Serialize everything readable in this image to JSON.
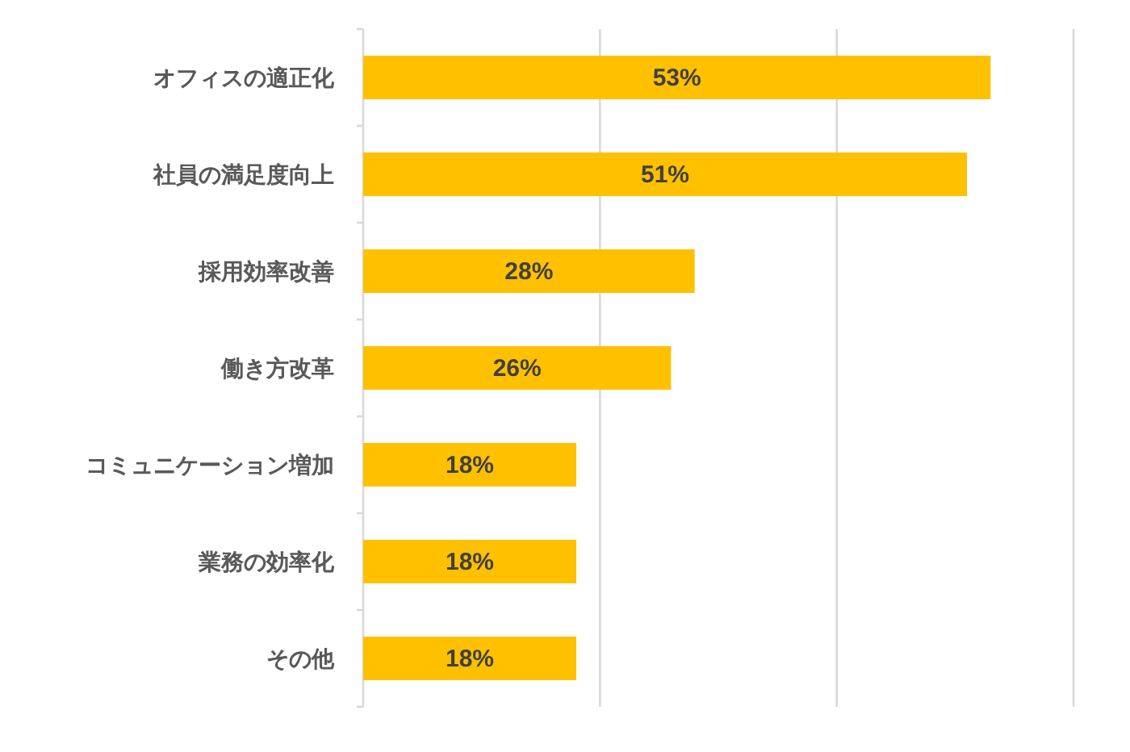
{
  "chart_data": {
    "type": "bar",
    "orientation": "horizontal",
    "categories": [
      "オフィスの適正化",
      "社員の満足度向上",
      "採用効率改善",
      "働き方改革",
      "コミュニケーション増加",
      "業務の効率化",
      "その他"
    ],
    "values": [
      53,
      51,
      28,
      26,
      18,
      18,
      18
    ],
    "value_labels": [
      "53%",
      "51%",
      "28%",
      "26%",
      "18%",
      "18%",
      "18%"
    ],
    "color": "#ffc000",
    "xlim": [
      0,
      60
    ],
    "xticks": [
      {
        "value": 0,
        "label": null
      },
      {
        "value": 20,
        "label": null
      },
      {
        "value": 40,
        "label": null
      },
      {
        "value": 60,
        "label": null
      }
    ],
    "grid": "x",
    "tick_labels": "y"
  }
}
